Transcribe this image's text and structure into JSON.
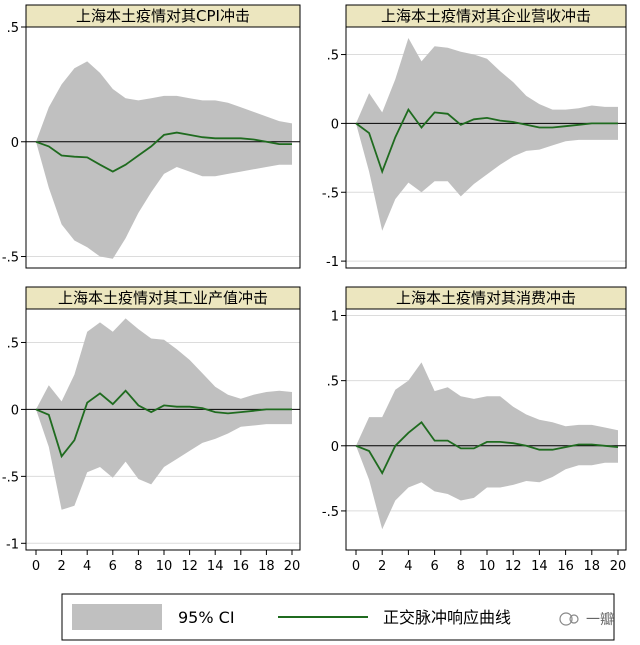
{
  "chart_data": [
    {
      "type": "area",
      "title": "上海本土疫情对其CPI冲击",
      "x": [
        0,
        1,
        2,
        3,
        4,
        5,
        6,
        7,
        8,
        9,
        10,
        11,
        12,
        13,
        14,
        15,
        16,
        17,
        18,
        19,
        20
      ],
      "series": [
        {
          "name": "正交脉冲响应曲线",
          "values": [
            0,
            -0.02,
            -0.06,
            -0.065,
            -0.068,
            -0.1,
            -0.13,
            -0.1,
            -0.06,
            -0.02,
            0.03,
            0.04,
            0.03,
            0.02,
            0.015,
            0.015,
            0.015,
            0.01,
            0,
            -0.01,
            -0.01
          ]
        },
        {
          "name": "95% CI",
          "upper": [
            0,
            0.15,
            0.25,
            0.32,
            0.35,
            0.3,
            0.23,
            0.19,
            0.18,
            0.19,
            0.2,
            0.2,
            0.19,
            0.18,
            0.18,
            0.17,
            0.15,
            0.13,
            0.11,
            0.09,
            0.08
          ],
          "lower": [
            0,
            -0.2,
            -0.36,
            -0.43,
            -0.46,
            -0.5,
            -0.51,
            -0.42,
            -0.31,
            -0.22,
            -0.14,
            -0.11,
            -0.13,
            -0.15,
            -0.15,
            -0.14,
            -0.13,
            -0.12,
            -0.11,
            -0.1,
            -0.1
          ]
        }
      ],
      "ylim": [
        -0.55,
        0.5
      ],
      "yticks": [
        -0.5,
        0,
        0.5
      ],
      "ytick_labels": [
        "-.5",
        "0",
        ".5"
      ],
      "xticks": [],
      "xtick_labels": [],
      "grid": true
    },
    {
      "type": "area",
      "title": "上海本土疫情对其企业营收冲击",
      "x": [
        0,
        1,
        2,
        3,
        4,
        5,
        6,
        7,
        8,
        9,
        10,
        11,
        12,
        13,
        14,
        15,
        16,
        17,
        18,
        19,
        20
      ],
      "series": [
        {
          "name": "正交脉冲响应曲线",
          "values": [
            0,
            -0.07,
            -0.35,
            -0.1,
            0.1,
            -0.03,
            0.08,
            0.07,
            -0.01,
            0.03,
            0.04,
            0.02,
            0.01,
            -0.01,
            -0.03,
            -0.03,
            -0.02,
            -0.01,
            0,
            0,
            0
          ]
        },
        {
          "name": "95% CI",
          "upper": [
            0,
            0.22,
            0.08,
            0.32,
            0.62,
            0.45,
            0.56,
            0.55,
            0.52,
            0.5,
            0.47,
            0.38,
            0.3,
            0.2,
            0.14,
            0.1,
            0.1,
            0.11,
            0.13,
            0.12,
            0.12
          ],
          "lower": [
            0,
            -0.35,
            -0.78,
            -0.55,
            -0.43,
            -0.5,
            -0.42,
            -0.42,
            -0.53,
            -0.44,
            -0.37,
            -0.3,
            -0.24,
            -0.2,
            -0.19,
            -0.16,
            -0.13,
            -0.12,
            -0.12,
            -0.12,
            -0.12
          ]
        }
      ],
      "ylim": [
        -1.05,
        0.7
      ],
      "yticks": [
        -1,
        -0.5,
        0,
        0.5
      ],
      "ytick_labels": [
        "-1",
        "-.5",
        "0",
        ".5"
      ],
      "xticks": [],
      "xtick_labels": [],
      "grid": true
    },
    {
      "type": "area",
      "title": "上海本土疫情对其工业产值冲击",
      "x": [
        0,
        1,
        2,
        3,
        4,
        5,
        6,
        7,
        8,
        9,
        10,
        11,
        12,
        13,
        14,
        15,
        16,
        17,
        18,
        19,
        20
      ],
      "series": [
        {
          "name": "正交脉冲响应曲线",
          "values": [
            0,
            -0.04,
            -0.35,
            -0.23,
            0.05,
            0.12,
            0.04,
            0.14,
            0.03,
            -0.02,
            0.03,
            0.02,
            0.02,
            0.01,
            -0.02,
            -0.03,
            -0.02,
            -0.01,
            0,
            0,
            0
          ]
        },
        {
          "name": "95% CI",
          "upper": [
            0,
            0.18,
            0.06,
            0.26,
            0.58,
            0.65,
            0.58,
            0.68,
            0.6,
            0.53,
            0.52,
            0.45,
            0.37,
            0.27,
            0.17,
            0.11,
            0.08,
            0.11,
            0.13,
            0.14,
            0.13
          ],
          "lower": [
            0,
            -0.28,
            -0.75,
            -0.72,
            -0.47,
            -0.43,
            -0.51,
            -0.39,
            -0.52,
            -0.56,
            -0.43,
            -0.37,
            -0.31,
            -0.25,
            -0.22,
            -0.18,
            -0.13,
            -0.12,
            -0.11,
            -0.11,
            -0.11
          ]
        }
      ],
      "ylim": [
        -1.05,
        0.75
      ],
      "yticks": [
        -1,
        -0.5,
        0,
        0.5
      ],
      "ytick_labels": [
        "-1",
        "-.5",
        "0",
        ".5"
      ],
      "xticks": [
        0,
        2,
        4,
        6,
        8,
        10,
        12,
        14,
        16,
        18,
        20
      ],
      "xtick_labels": [
        "0",
        "2",
        "4",
        "6",
        "8",
        "10",
        "12",
        "14",
        "16",
        "18",
        "20"
      ],
      "grid": true
    },
    {
      "type": "area",
      "title": "上海本土疫情对其消费冲击",
      "x": [
        0,
        1,
        2,
        3,
        4,
        5,
        6,
        7,
        8,
        9,
        10,
        11,
        12,
        13,
        14,
        15,
        16,
        17,
        18,
        19,
        20
      ],
      "series": [
        {
          "name": "正交脉冲响应曲线",
          "values": [
            0,
            -0.04,
            -0.21,
            0,
            0.1,
            0.18,
            0.04,
            0.04,
            -0.02,
            -0.02,
            0.03,
            0.03,
            0.02,
            0,
            -0.03,
            -0.03,
            -0.01,
            0.01,
            0.01,
            0,
            -0.01
          ]
        },
        {
          "name": "95% CI",
          "upper": [
            0,
            0.22,
            0.22,
            0.43,
            0.5,
            0.64,
            0.42,
            0.45,
            0.38,
            0.36,
            0.38,
            0.38,
            0.3,
            0.24,
            0.2,
            0.18,
            0.15,
            0.16,
            0.16,
            0.14,
            0.12
          ],
          "lower": [
            0,
            -0.26,
            -0.64,
            -0.42,
            -0.32,
            -0.28,
            -0.35,
            -0.37,
            -0.42,
            -0.4,
            -0.32,
            -0.32,
            -0.3,
            -0.27,
            -0.28,
            -0.24,
            -0.18,
            -0.15,
            -0.15,
            -0.13,
            -0.13
          ]
        }
      ],
      "ylim": [
        -0.8,
        1.05
      ],
      "yticks": [
        -0.5,
        0,
        0.5,
        1
      ],
      "ytick_labels": [
        "-.5",
        "0",
        ".5",
        "1"
      ],
      "xticks": [
        0,
        2,
        4,
        6,
        8,
        10,
        12,
        14,
        16,
        18,
        20
      ],
      "xtick_labels": [
        "0",
        "2",
        "4",
        "6",
        "8",
        "10",
        "12",
        "14",
        "16",
        "18",
        "20"
      ],
      "grid": true
    }
  ],
  "legend": {
    "ci_label": "95% CI",
    "line_label": "正交脉冲响应曲线"
  },
  "watermark": {
    "text": "一瓣"
  },
  "colors": {
    "ci_band": "#c0c0c0",
    "irf_line": "#1f6b1f",
    "title_bg": "#ece6bf",
    "grid": "#dcdcdc"
  }
}
